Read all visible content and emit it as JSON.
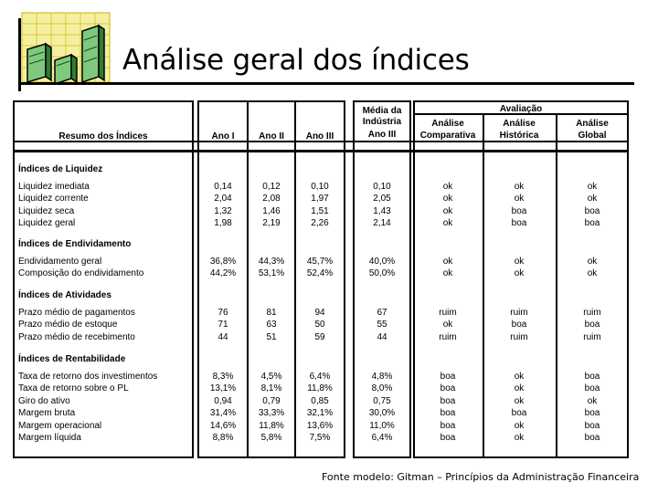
{
  "title": "Análise geral dos índices",
  "footer": "Fonte modelo: Gitman – Princípios da Administração Financeira",
  "headers": {
    "resumo": "Resumo dos Índices",
    "ano1": "Ano I",
    "ano2": "Ano II",
    "ano3": "Ano III",
    "media_line1": "Média da",
    "media_line2": "Indústria",
    "media_line3": "Ano III",
    "avaliacao": "Avaliação",
    "comp_line1": "Análise",
    "comp_line2": "Comparativa",
    "hist_line1": "Análise",
    "hist_line2": "Histórica",
    "glob_line1": "Análise",
    "glob_line2": "Global"
  },
  "sections": [
    {
      "title": "Índices de Liquidez",
      "rows": [
        [
          "Liquidez imediata",
          "0,14",
          "0,12",
          "0,10",
          "0,10",
          "ok",
          "ok",
          "ok"
        ],
        [
          "Liquidez corrente",
          "2,04",
          "2,08",
          "1,97",
          "2,05",
          "ok",
          "ok",
          "ok"
        ],
        [
          "Liquidez seca",
          "1,32",
          "1,46",
          "1,51",
          "1,43",
          "ok",
          "boa",
          "boa"
        ],
        [
          "Liquidez geral",
          "1,98",
          "2,19",
          "2,26",
          "2,14",
          "ok",
          "boa",
          "boa"
        ]
      ]
    },
    {
      "title": "Índices de Endividamento",
      "rows": [
        [
          "Endividamento geral",
          "36,8%",
          "44,3%",
          "45,7%",
          "40,0%",
          "ok",
          "ok",
          "ok"
        ],
        [
          "Composição do endividamento",
          "44,2%",
          "53,1%",
          "52,4%",
          "50,0%",
          "ok",
          "ok",
          "ok"
        ]
      ]
    },
    {
      "title": "Índices de Atividades",
      "rows": [
        [
          "Prazo médio de pagamentos",
          "76",
          "81",
          "94",
          "67",
          "ruim",
          "ruim",
          "ruim"
        ],
        [
          "Prazo médio de estoque",
          "71",
          "63",
          "50",
          "55",
          "ok",
          "boa",
          "boa"
        ],
        [
          "Prazo médio de recebimento",
          "44",
          "51",
          "59",
          "44",
          "ruim",
          "ruim",
          "ruim"
        ]
      ]
    },
    {
      "title": "Índices de Rentabilidade",
      "rows": [
        [
          "Taxa de retorno dos investimentos",
          "8,3%",
          "4,5%",
          "6,4%",
          "4,8%",
          "boa",
          "ok",
          "boa"
        ],
        [
          "Taxa de retorno sobre o PL",
          "13,1%",
          "8,1%",
          "11,8%",
          "8,0%",
          "boa",
          "ok",
          "boa"
        ],
        [
          "Giro do ativo",
          "0,94",
          "0,79",
          "0,85",
          "0,75",
          "boa",
          "ok",
          "ok"
        ],
        [
          "Margem bruta",
          "31,4%",
          "33,3%",
          "32,1%",
          "30,0%",
          "boa",
          "boa",
          "boa"
        ],
        [
          "Margem operacional",
          "14,6%",
          "11,8%",
          "13,6%",
          "11,0%",
          "boa",
          "ok",
          "boa"
        ],
        [
          "Margem líquida",
          "8,8%",
          "5,8%",
          "7,5%",
          "6,4%",
          "boa",
          "ok",
          "boa"
        ]
      ]
    }
  ]
}
